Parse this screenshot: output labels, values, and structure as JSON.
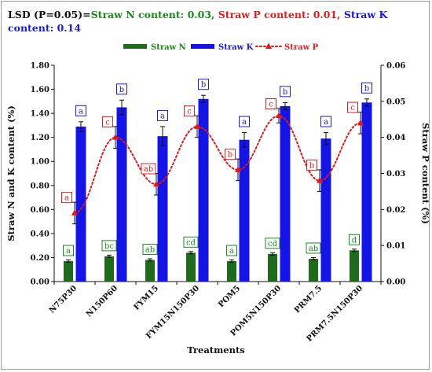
{
  "title": {
    "prefix": "LSD (P=0.05)=",
    "n_part": "Straw N content: 0.03,",
    "p_part": "Straw P content: 0.01,",
    "k_part": "Straw K content: 0.14"
  },
  "colors": {
    "n": "#1e6b1e",
    "k": "#1414e6",
    "p": "#e01818",
    "n_text": "#1a8a1a",
    "p_text": "#e02020",
    "k_text": "#1a1ad8"
  },
  "chart_data": {
    "type": "bar",
    "title": "LSD (P=0.05)=Straw N content: 0.03, Straw P content: 0.01, Straw K content: 0.14",
    "xlabel": "Treatments",
    "ylabel": "Straw N and K content (%)",
    "y2label": "Straw P content (%)",
    "ylim": [
      0,
      1.8
    ],
    "y2lim": [
      0,
      0.06
    ],
    "yticks": [
      "0.00",
      "0.20",
      "0.40",
      "0.60",
      "0.80",
      "1.00",
      "1.20",
      "1.40",
      "1.60",
      "1.80"
    ],
    "y2ticks": [
      "0.00",
      "0.01",
      "0.02",
      "0.03",
      "0.04",
      "0.05",
      "0.06"
    ],
    "categories": [
      "N75P30",
      "N150P60",
      "FYM15",
      "FYM15N150P30",
      "POM5",
      "POM5N150P30",
      "PRM7.5",
      "PRM7.5N150P30"
    ],
    "legend_position": "top",
    "series": [
      {
        "name": "Straw N",
        "type": "bar",
        "axis": "left",
        "values": [
          0.17,
          0.21,
          0.18,
          0.24,
          0.17,
          0.23,
          0.19,
          0.26
        ],
        "errors": [
          0.01,
          0.01,
          0.01,
          0.01,
          0.01,
          0.01,
          0.01,
          0.01
        ],
        "letters": [
          "a",
          "bc",
          "ab",
          "cd",
          "a",
          "cd",
          "ab",
          "d"
        ]
      },
      {
        "name": "Straw K",
        "type": "bar",
        "axis": "left",
        "values": [
          1.29,
          1.45,
          1.21,
          1.52,
          1.18,
          1.46,
          1.19,
          1.49
        ],
        "errors": [
          0.04,
          0.06,
          0.08,
          0.03,
          0.06,
          0.03,
          0.05,
          0.03
        ],
        "letters": [
          "a",
          "b",
          "a",
          "b",
          "a",
          "b",
          "a",
          "b"
        ]
      },
      {
        "name": "Straw P",
        "type": "line",
        "axis": "right",
        "values": [
          0.019,
          0.04,
          0.027,
          0.043,
          0.031,
          0.046,
          0.028,
          0.044
        ],
        "errors": [
          0.003,
          0.003,
          0.003,
          0.003,
          0.003,
          0.002,
          0.003,
          0.003
        ],
        "letters": [
          "a",
          "c",
          "ab",
          "c",
          "b",
          "c",
          "b",
          "c"
        ]
      }
    ]
  }
}
